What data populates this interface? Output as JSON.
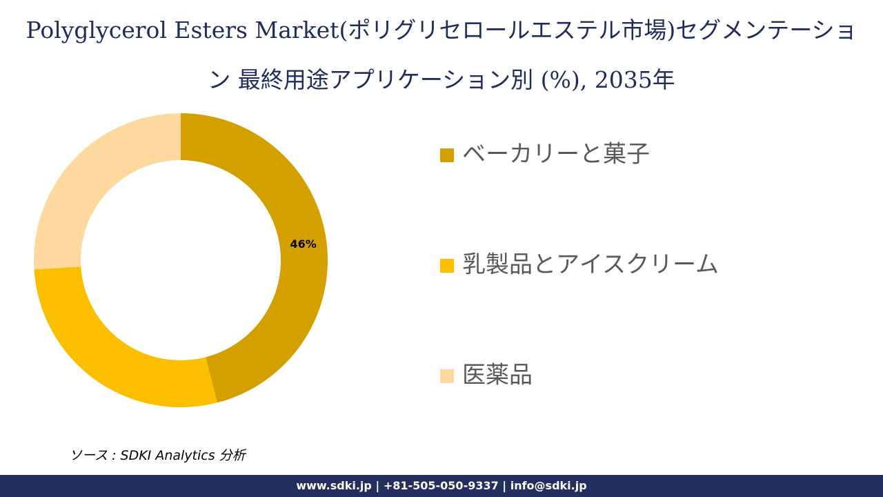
{
  "chart_data": {
    "type": "donut",
    "title": "Polyglycerol Esters Market(ポリグリセロールエステル市場)セグメンテーション 最終用途アプリケーション別 (%), 2035年",
    "categories": [
      "ベーカリーと菓子",
      "乳製品とアイスクリーム",
      "医薬品"
    ],
    "values": [
      46,
      28,
      26
    ],
    "value_labels": [
      "46%",
      null,
      null
    ],
    "colors": [
      "#d4a000",
      "#fcbf00",
      "#fdd9a0"
    ],
    "legend": "right"
  },
  "source": "ソース : SDKI Analytics 分析",
  "footer": "www.sdki.jp | +81-505-050-9337 | info@sdki.jp"
}
